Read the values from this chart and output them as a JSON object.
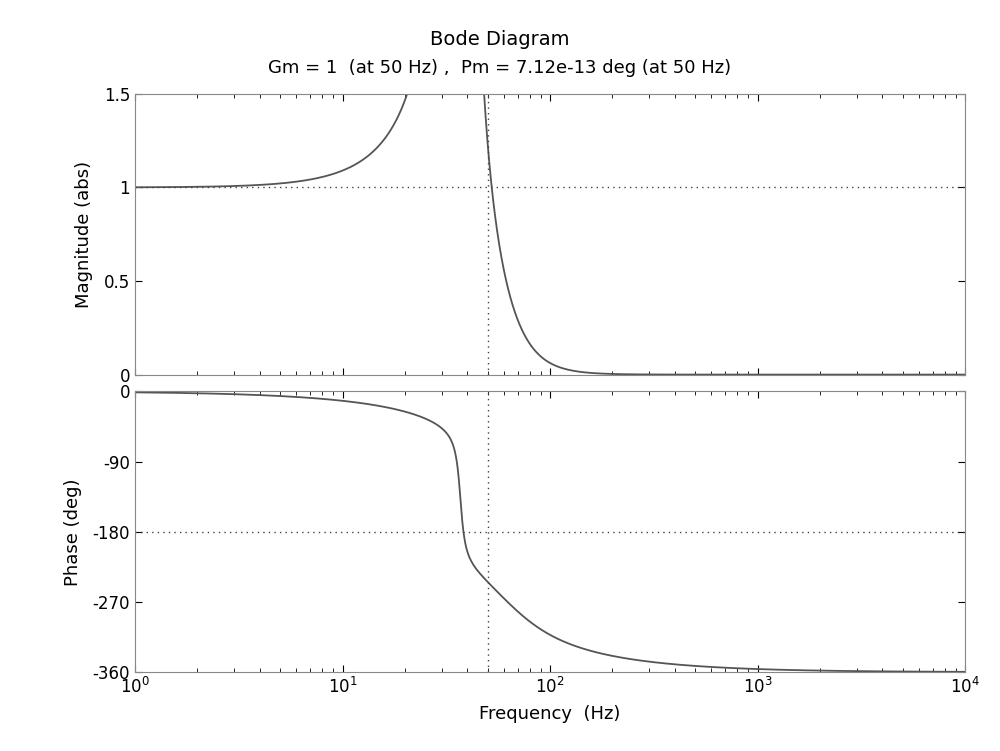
{
  "title": "Bode Diagram",
  "subtitle": "Gm = 1  (at 50 Hz) ,  Pm = 7.12e-13 deg (at 50 Hz)",
  "xlabel": "Frequency  (Hz)",
  "ylabel_mag": "Magnitude (abs)",
  "ylabel_phase": "Phase (deg)",
  "freq_min": 1,
  "freq_max": 10000,
  "mag_ylim": [
    0,
    1.5
  ],
  "mag_yticks": [
    0,
    0.5,
    1,
    1.5
  ],
  "mag_yticklabels": [
    "0",
    "0.5",
    "1",
    "1.5"
  ],
  "phase_ylim": [
    -360,
    0
  ],
  "phase_yticks": [
    -360,
    -270,
    -180,
    -90,
    0
  ],
  "phase_yticklabels": [
    "-360",
    "-270",
    "-180",
    "-90",
    "0"
  ],
  "mag_hline": 1.0,
  "phase_hline": -180,
  "vline_freq": 50,
  "line_color": "#555555",
  "ref_line_color": "#444444",
  "bg_color": "#ffffff",
  "title_fontsize": 14,
  "subtitle_fontsize": 13,
  "label_fontsize": 13,
  "tick_fontsize": 12,
  "zeta1": 0.04,
  "f1": 37,
  "zeta2": 0.55,
  "f2": 60
}
